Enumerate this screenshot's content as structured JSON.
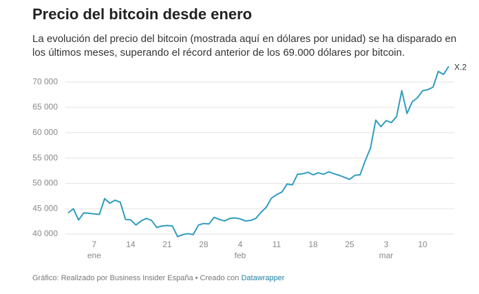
{
  "chart_data": {
    "type": "line",
    "title": "Precio del bitcoin desde enero",
    "subtitle": "La evolución del precio del bitcoin (mostrada aquí en dólares por unidad) se ha disparado en los últimos meses, superando el récord anterior de los 69.000 dólares por bitcoin.",
    "source": "Gráfico: Realizado por Business Insider España • Creado con",
    "credit": "Datawrapper",
    "x": [
      2,
      3,
      4,
      5,
      6,
      7,
      8,
      9,
      10,
      11,
      12,
      13,
      14,
      15,
      16,
      17,
      18,
      19,
      20,
      21,
      22,
      23,
      24,
      25,
      26,
      27,
      28,
      29,
      30,
      31,
      32,
      33,
      34,
      35,
      36,
      37,
      38,
      39,
      40,
      41,
      42,
      43,
      44,
      45,
      46,
      47,
      48,
      49,
      50,
      51,
      52,
      53,
      54,
      55,
      56,
      57,
      58,
      59,
      60,
      61,
      62,
      63,
      64,
      65,
      66,
      67,
      68,
      69,
      70,
      71,
      72,
      73,
      74,
      75
    ],
    "series": [
      {
        "name": "X.2",
        "color": "#2e9cbf",
        "values": [
          44200,
          45000,
          42800,
          44200,
          44100,
          44000,
          43900,
          47000,
          46100,
          46700,
          46300,
          42900,
          42800,
          41800,
          42600,
          43100,
          42700,
          41300,
          41600,
          41700,
          41600,
          39500,
          39900,
          40100,
          39900,
          41800,
          42100,
          42000,
          43300,
          42900,
          42600,
          43100,
          43200,
          43000,
          42600,
          42700,
          43100,
          44300,
          45300,
          47100,
          47800,
          48300,
          49900,
          49700,
          51800,
          51900,
          52200,
          51700,
          52100,
          51800,
          52300,
          51900,
          51600,
          51200,
          50800,
          51600,
          51700,
          54500,
          57000,
          62500,
          61200,
          62400,
          62000,
          63200,
          68300,
          63800,
          66100,
          66900,
          68300,
          68500,
          69000,
          72100,
          71500,
          73100
        ]
      }
    ],
    "xlim": [
      2,
      75
    ],
    "xticks": [
      {
        "value": 7,
        "label": "7"
      },
      {
        "value": 14,
        "label": "14"
      },
      {
        "value": 21,
        "label": "21"
      },
      {
        "value": 28,
        "label": "28"
      },
      {
        "value": 35,
        "label": "4"
      },
      {
        "value": 42,
        "label": "11"
      },
      {
        "value": 49,
        "label": "18"
      },
      {
        "value": 56,
        "label": "25"
      },
      {
        "value": 63,
        "label": "3"
      },
      {
        "value": 70,
        "label": "10"
      }
    ],
    "month_labels": [
      {
        "value": 7,
        "label": "ene"
      },
      {
        "value": 35,
        "label": "feb"
      },
      {
        "value": 63,
        "label": "mar"
      }
    ],
    "ylim": [
      39000,
      73500
    ],
    "yticks": [
      {
        "value": 40000,
        "label": "40 000"
      },
      {
        "value": 45000,
        "label": "45 000"
      },
      {
        "value": 50000,
        "label": "50 000"
      },
      {
        "value": 55000,
        "label": "55 000"
      },
      {
        "value": 60000,
        "label": "60 000"
      },
      {
        "value": 65000,
        "label": "65 000"
      },
      {
        "value": 70000,
        "label": "70 000"
      }
    ],
    "grid": true
  }
}
